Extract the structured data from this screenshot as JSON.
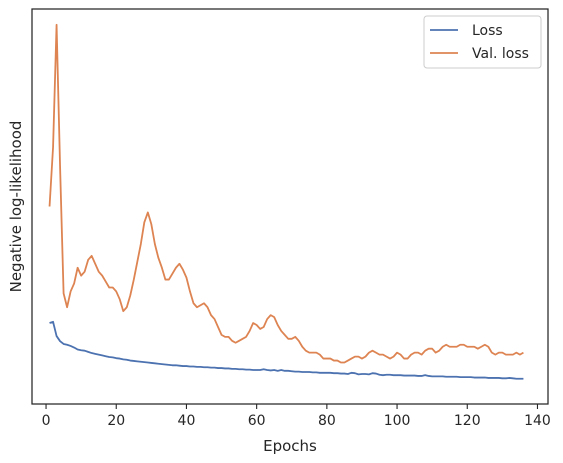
{
  "chart_data": {
    "type": "line",
    "title": "",
    "xlabel": "Epochs",
    "ylabel": "Negative log-likelihood",
    "xlim": [
      -4,
      143
    ],
    "ylim": [
      0,
      100
    ],
    "y_ticks_shown": false,
    "x_ticks": [
      0,
      20,
      40,
      60,
      80,
      100,
      120,
      140
    ],
    "legend": {
      "placement": "top-right"
    },
    "grid": false,
    "series": [
      {
        "name": "Loss",
        "color": "#4C72B0",
        "x": [
          1,
          2,
          3,
          4,
          5,
          6,
          7,
          8,
          9,
          10,
          11,
          12,
          13,
          14,
          15,
          16,
          17,
          18,
          19,
          20,
          21,
          22,
          23,
          24,
          25,
          26,
          27,
          28,
          29,
          30,
          31,
          32,
          33,
          34,
          35,
          36,
          37,
          38,
          39,
          40,
          41,
          42,
          43,
          44,
          45,
          46,
          47,
          48,
          49,
          50,
          51,
          52,
          53,
          54,
          55,
          56,
          57,
          58,
          59,
          60,
          61,
          62,
          63,
          64,
          65,
          66,
          67,
          68,
          69,
          70,
          71,
          72,
          73,
          74,
          75,
          76,
          77,
          78,
          79,
          80,
          81,
          82,
          83,
          84,
          85,
          86,
          87,
          88,
          89,
          90,
          91,
          92,
          93,
          94,
          95,
          96,
          97,
          98,
          99,
          100,
          101,
          102,
          103,
          104,
          105,
          106,
          107,
          108,
          109,
          110,
          111,
          112,
          113,
          114,
          115,
          116,
          117,
          118,
          119,
          120,
          121,
          122,
          123,
          124,
          125,
          126,
          127,
          128,
          129,
          130,
          131,
          132,
          133,
          134,
          135,
          136
        ],
        "y": [
          20.5,
          20.8,
          17.2,
          15.9,
          15.2,
          15.0,
          14.7,
          14.3,
          13.8,
          13.6,
          13.5,
          13.2,
          12.9,
          12.7,
          12.5,
          12.3,
          12.1,
          11.9,
          11.8,
          11.6,
          11.5,
          11.3,
          11.2,
          11.0,
          10.9,
          10.8,
          10.7,
          10.6,
          10.5,
          10.4,
          10.3,
          10.2,
          10.1,
          10.0,
          9.9,
          9.8,
          9.8,
          9.7,
          9.6,
          9.6,
          9.5,
          9.5,
          9.4,
          9.4,
          9.3,
          9.3,
          9.2,
          9.2,
          9.1,
          9.1,
          9.0,
          9.0,
          8.9,
          8.9,
          8.8,
          8.8,
          8.7,
          8.7,
          8.6,
          8.6,
          8.6,
          8.8,
          8.6,
          8.5,
          8.6,
          8.4,
          8.6,
          8.4,
          8.4,
          8.3,
          8.2,
          8.2,
          8.1,
          8.1,
          8.1,
          8.0,
          8.0,
          7.9,
          7.9,
          7.9,
          7.9,
          7.8,
          7.8,
          7.7,
          7.7,
          7.6,
          7.9,
          7.8,
          7.5,
          7.6,
          7.6,
          7.5,
          7.8,
          7.7,
          7.4,
          7.3,
          7.4,
          7.4,
          7.3,
          7.3,
          7.3,
          7.2,
          7.2,
          7.2,
          7.2,
          7.1,
          7.1,
          7.3,
          7.1,
          7.0,
          7.0,
          7.0,
          7.0,
          6.9,
          6.9,
          6.9,
          6.9,
          6.8,
          6.8,
          6.8,
          6.8,
          6.7,
          6.7,
          6.7,
          6.7,
          6.6,
          6.6,
          6.6,
          6.6,
          6.5,
          6.5,
          6.6,
          6.5,
          6.4,
          6.4,
          6.4
        ]
      },
      {
        "name": "Val. loss",
        "color": "#DD8452",
        "x": [
          1,
          2,
          3,
          4,
          5,
          6,
          7,
          8,
          9,
          10,
          11,
          12,
          13,
          14,
          15,
          16,
          17,
          18,
          19,
          20,
          21,
          22,
          23,
          24,
          25,
          26,
          27,
          28,
          29,
          30,
          31,
          32,
          33,
          34,
          35,
          36,
          37,
          38,
          39,
          40,
          41,
          42,
          43,
          44,
          45,
          46,
          47,
          48,
          49,
          50,
          51,
          52,
          53,
          54,
          55,
          56,
          57,
          58,
          59,
          60,
          61,
          62,
          63,
          64,
          65,
          66,
          67,
          68,
          69,
          70,
          71,
          72,
          73,
          74,
          75,
          76,
          77,
          78,
          79,
          80,
          81,
          82,
          83,
          84,
          85,
          86,
          87,
          88,
          89,
          90,
          91,
          92,
          93,
          94,
          95,
          96,
          97,
          98,
          99,
          100,
          101,
          102,
          103,
          104,
          105,
          106,
          107,
          108,
          109,
          110,
          111,
          112,
          113,
          114,
          115,
          116,
          117,
          118,
          119,
          120,
          121,
          122,
          123,
          124,
          125,
          126,
          127,
          128,
          129,
          130,
          131,
          132,
          133,
          134,
          135,
          136
        ],
        "y": [
          50,
          65,
          96,
          60,
          28,
          24.5,
          28.5,
          30.5,
          34.5,
          32.5,
          33.5,
          36.5,
          37.5,
          35.5,
          33.5,
          32.5,
          31.0,
          29.5,
          29.5,
          28.5,
          26.5,
          23.5,
          24.5,
          27.5,
          31.5,
          36.0,
          40.5,
          46.0,
          48.5,
          45.5,
          40.5,
          37.0,
          34.5,
          31.5,
          31.5,
          33.0,
          34.5,
          35.5,
          34.0,
          32.0,
          28.5,
          25.5,
          24.5,
          25.0,
          25.5,
          24.5,
          22.5,
          21.5,
          19.5,
          17.5,
          17.0,
          17.0,
          16.0,
          15.5,
          16.0,
          16.5,
          17.0,
          18.5,
          20.5,
          20.0,
          19.0,
          19.5,
          21.5,
          22.5,
          22.0,
          20.0,
          18.5,
          17.5,
          16.5,
          16.5,
          17.0,
          16.0,
          14.5,
          13.5,
          13.0,
          13.0,
          13.0,
          12.5,
          11.5,
          11.5,
          11.5,
          11.0,
          11.0,
          10.5,
          10.5,
          11.0,
          11.5,
          12.0,
          12.0,
          11.5,
          12.0,
          13.0,
          13.5,
          13.0,
          12.5,
          12.5,
          12.0,
          11.5,
          12.0,
          13.0,
          12.5,
          11.5,
          11.5,
          12.5,
          13.0,
          13.0,
          12.5,
          13.5,
          14.0,
          14.0,
          13.0,
          13.5,
          14.5,
          15.0,
          14.5,
          14.5,
          14.5,
          15.0,
          15.0,
          14.5,
          14.5,
          14.5,
          14.0,
          14.5,
          15.0,
          14.5,
          13.0,
          12.5,
          13.0,
          13.0,
          12.5,
          12.5,
          12.5,
          13.0,
          12.5,
          13.0
        ]
      }
    ]
  }
}
